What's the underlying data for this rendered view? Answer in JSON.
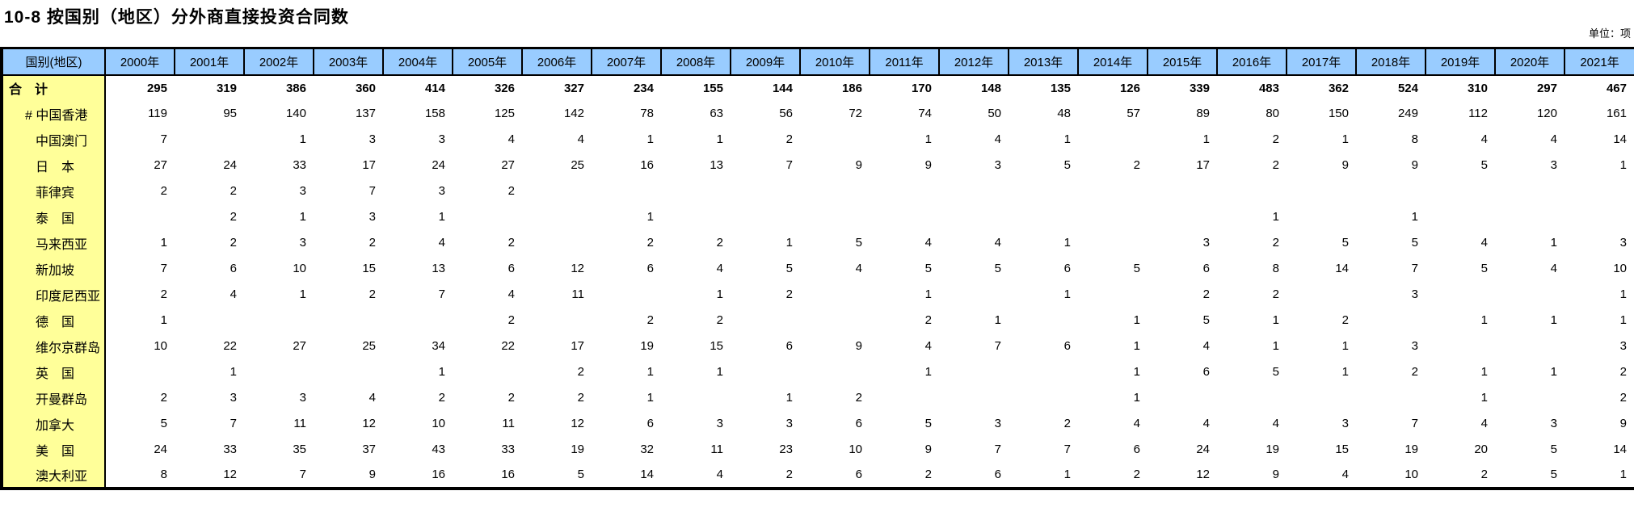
{
  "page": {
    "title": "10-8 按国别（地区）分外商直接投资合同数",
    "unit_label": "单位：项"
  },
  "table": {
    "corner_header": "国别(地区)",
    "year_columns": [
      "2000年",
      "2001年",
      "2002年",
      "2003年",
      "2004年",
      "2005年",
      "2006年",
      "2007年",
      "2008年",
      "2009年",
      "2010年",
      "2011年",
      "2012年",
      "2013年",
      "2014年",
      "2015年",
      "2016年",
      "2017年",
      "2018年",
      "2019年",
      "2020年",
      "2021年"
    ],
    "colors": {
      "header_bg": "#99CCFF",
      "label_bg": "#FFFF99",
      "border": "#000000"
    },
    "rows": [
      {
        "label": "合　计",
        "indent": 0,
        "bold": true,
        "values": [
          "295",
          "319",
          "386",
          "360",
          "414",
          "326",
          "327",
          "234",
          "155",
          "144",
          "186",
          "170",
          "148",
          "135",
          "126",
          "339",
          "483",
          "362",
          "524",
          "310",
          "297",
          "467"
        ]
      },
      {
        "label": "# 中国香港",
        "indent": 1,
        "bold": false,
        "values": [
          "119",
          "95",
          "140",
          "137",
          "158",
          "125",
          "142",
          "78",
          "63",
          "56",
          "72",
          "74",
          "50",
          "48",
          "57",
          "89",
          "80",
          "150",
          "249",
          "112",
          "120",
          "161"
        ]
      },
      {
        "label": "中国澳门",
        "indent": 2,
        "bold": false,
        "values": [
          "7",
          "",
          "1",
          "3",
          "3",
          "4",
          "4",
          "1",
          "1",
          "2",
          "",
          "1",
          "4",
          "1",
          "",
          "1",
          "2",
          "1",
          "8",
          "4",
          "4",
          "14"
        ]
      },
      {
        "label": "日　本",
        "indent": 2,
        "bold": false,
        "values": [
          "27",
          "24",
          "33",
          "17",
          "24",
          "27",
          "25",
          "16",
          "13",
          "7",
          "9",
          "9",
          "3",
          "5",
          "2",
          "17",
          "2",
          "9",
          "9",
          "5",
          "3",
          "1"
        ]
      },
      {
        "label": "菲律宾",
        "indent": 2,
        "bold": false,
        "values": [
          "2",
          "2",
          "3",
          "7",
          "3",
          "2",
          "",
          "",
          "",
          "",
          "",
          "",
          "",
          "",
          "",
          "",
          "",
          "",
          "",
          "",
          "",
          ""
        ]
      },
      {
        "label": "泰　国",
        "indent": 2,
        "bold": false,
        "values": [
          "",
          "2",
          "1",
          "3",
          "1",
          "",
          "",
          "1",
          "",
          "",
          "",
          "",
          "",
          "",
          "",
          "",
          "1",
          "",
          "1",
          "",
          "",
          ""
        ]
      },
      {
        "label": "马来西亚",
        "indent": 2,
        "bold": false,
        "values": [
          "1",
          "2",
          "3",
          "2",
          "4",
          "2",
          "",
          "2",
          "2",
          "1",
          "5",
          "4",
          "4",
          "1",
          "",
          "3",
          "2",
          "5",
          "5",
          "4",
          "1",
          "3"
        ]
      },
      {
        "label": "新加坡",
        "indent": 2,
        "bold": false,
        "values": [
          "7",
          "6",
          "10",
          "15",
          "13",
          "6",
          "12",
          "6",
          "4",
          "5",
          "4",
          "5",
          "5",
          "6",
          "5",
          "6",
          "8",
          "14",
          "7",
          "5",
          "4",
          "10"
        ]
      },
      {
        "label": "印度尼西亚",
        "indent": 2,
        "bold": false,
        "values": [
          "2",
          "4",
          "1",
          "2",
          "7",
          "4",
          "11",
          "",
          "1",
          "2",
          "",
          "1",
          "",
          "1",
          "",
          "2",
          "2",
          "",
          "3",
          "",
          "",
          "1"
        ]
      },
      {
        "label": "德　国",
        "indent": 2,
        "bold": false,
        "values": [
          "1",
          "",
          "",
          "",
          "",
          "2",
          "",
          "2",
          "2",
          "",
          "",
          "2",
          "1",
          "",
          "1",
          "5",
          "1",
          "2",
          "",
          "1",
          "1",
          "1"
        ]
      },
      {
        "label": "维尔京群岛",
        "indent": 2,
        "bold": false,
        "values": [
          "10",
          "22",
          "27",
          "25",
          "34",
          "22",
          "17",
          "19",
          "15",
          "6",
          "9",
          "4",
          "7",
          "6",
          "1",
          "4",
          "1",
          "1",
          "3",
          "",
          "",
          "3"
        ]
      },
      {
        "label": "英　国",
        "indent": 2,
        "bold": false,
        "values": [
          "",
          "1",
          "",
          "",
          "1",
          "",
          "2",
          "1",
          "1",
          "",
          "",
          "1",
          "",
          "",
          "1",
          "6",
          "5",
          "1",
          "2",
          "1",
          "1",
          "2"
        ]
      },
      {
        "label": "开曼群岛",
        "indent": 2,
        "bold": false,
        "values": [
          "2",
          "3",
          "3",
          "4",
          "2",
          "2",
          "2",
          "1",
          "",
          "1",
          "2",
          "",
          "",
          "",
          "1",
          "",
          "",
          "",
          "",
          "1",
          "",
          "2"
        ]
      },
      {
        "label": "加拿大",
        "indent": 2,
        "bold": false,
        "values": [
          "5",
          "7",
          "11",
          "12",
          "10",
          "11",
          "12",
          "6",
          "3",
          "3",
          "6",
          "5",
          "3",
          "2",
          "4",
          "4",
          "4",
          "3",
          "7",
          "4",
          "3",
          "9"
        ]
      },
      {
        "label": "美　国",
        "indent": 2,
        "bold": false,
        "values": [
          "24",
          "33",
          "35",
          "37",
          "43",
          "33",
          "19",
          "32",
          "11",
          "23",
          "10",
          "9",
          "7",
          "7",
          "6",
          "24",
          "19",
          "15",
          "19",
          "20",
          "5",
          "14"
        ]
      },
      {
        "label": "澳大利亚",
        "indent": 2,
        "bold": false,
        "values": [
          "8",
          "12",
          "7",
          "9",
          "16",
          "16",
          "5",
          "14",
          "4",
          "2",
          "6",
          "2",
          "6",
          "1",
          "2",
          "12",
          "9",
          "4",
          "10",
          "2",
          "5",
          "1"
        ]
      }
    ]
  }
}
